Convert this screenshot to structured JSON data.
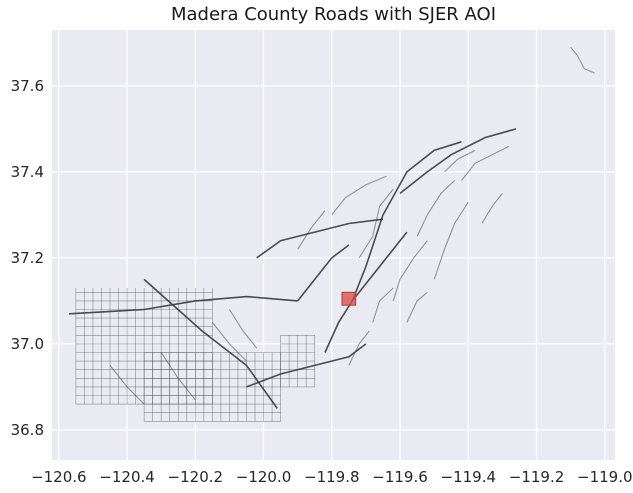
{
  "chart_data": {
    "type": "map",
    "title": "Madera County Roads with SJER AOI",
    "xlabel": "",
    "ylabel": "",
    "xlim": [
      -120.62,
      -118.97
    ],
    "ylim": [
      36.73,
      37.73
    ],
    "x_ticks": [
      {
        "value": -120.6,
        "label": "−120.6"
      },
      {
        "value": -120.4,
        "label": "−120.4"
      },
      {
        "value": -120.2,
        "label": "−120.2"
      },
      {
        "value": -120.0,
        "label": "−120.0"
      },
      {
        "value": -119.8,
        "label": "−119.8"
      },
      {
        "value": -119.6,
        "label": "−119.6"
      },
      {
        "value": -119.4,
        "label": "−119.4"
      },
      {
        "value": -119.2,
        "label": "−119.2"
      },
      {
        "value": -119.0,
        "label": "−119.0"
      }
    ],
    "y_ticks": [
      {
        "value": 36.8,
        "label": "36.8"
      },
      {
        "value": 37.0,
        "label": "37.0"
      },
      {
        "value": 37.2,
        "label": "37.2"
      },
      {
        "value": 37.4,
        "label": "37.4"
      },
      {
        "value": 37.6,
        "label": "37.6"
      }
    ],
    "grid": true,
    "colors": {
      "background": "#eaeaf2",
      "grid": "#ffffff",
      "roads": "#3a3a3a",
      "aoi_fill": "#d9534f",
      "aoi_edge": "#b03a3a"
    },
    "aoi": {
      "x": [
        -119.77,
        -119.73
      ],
      "y": [
        37.09,
        37.12
      ]
    },
    "major_roads": [
      [
        [
          -120.35,
          37.15
        ],
        [
          -120.18,
          37.03
        ],
        [
          -120.05,
          36.95
        ],
        [
          -119.96,
          36.85
        ]
      ],
      [
        [
          -120.57,
          37.07
        ],
        [
          -120.35,
          37.08
        ],
        [
          -120.2,
          37.1
        ],
        [
          -120.05,
          37.11
        ],
        [
          -119.9,
          37.1
        ]
      ],
      [
        [
          -120.05,
          36.9
        ],
        [
          -119.95,
          36.93
        ],
        [
          -119.85,
          36.95
        ],
        [
          -119.75,
          36.97
        ],
        [
          -119.7,
          37.0
        ]
      ],
      [
        [
          -119.82,
          36.98
        ],
        [
          -119.78,
          37.05
        ],
        [
          -119.74,
          37.1
        ],
        [
          -119.7,
          37.18
        ],
        [
          -119.65,
          37.3
        ],
        [
          -119.58,
          37.4
        ],
        [
          -119.5,
          37.45
        ],
        [
          -119.42,
          37.47
        ]
      ],
      [
        [
          -120.02,
          37.2
        ],
        [
          -119.95,
          37.24
        ],
        [
          -119.85,
          37.26
        ],
        [
          -119.75,
          37.28
        ],
        [
          -119.65,
          37.29
        ]
      ],
      [
        [
          -119.74,
          37.1
        ],
        [
          -119.7,
          37.14
        ],
        [
          -119.64,
          37.2
        ],
        [
          -119.58,
          37.26
        ]
      ],
      [
        [
          -119.6,
          37.35
        ],
        [
          -119.52,
          37.4
        ],
        [
          -119.45,
          37.44
        ],
        [
          -119.35,
          37.48
        ],
        [
          -119.26,
          37.5
        ]
      ],
      [
        [
          -119.9,
          37.1
        ],
        [
          -119.85,
          37.15
        ],
        [
          -119.8,
          37.2
        ],
        [
          -119.75,
          37.23
        ]
      ]
    ],
    "minor_roads": [
      [
        [
          -119.72,
          37.2
        ],
        [
          -119.68,
          37.25
        ],
        [
          -119.66,
          37.32
        ],
        [
          -119.62,
          37.36
        ]
      ],
      [
        [
          -119.55,
          37.25
        ],
        [
          -119.52,
          37.3
        ],
        [
          -119.48,
          37.35
        ],
        [
          -119.44,
          37.38
        ]
      ],
      [
        [
          -119.5,
          37.15
        ],
        [
          -119.47,
          37.22
        ],
        [
          -119.44,
          37.28
        ],
        [
          -119.4,
          37.33
        ]
      ],
      [
        [
          -119.62,
          37.1
        ],
        [
          -119.6,
          37.15
        ],
        [
          -119.56,
          37.2
        ],
        [
          -119.52,
          37.24
        ]
      ],
      [
        [
          -119.8,
          37.3
        ],
        [
          -119.76,
          37.34
        ],
        [
          -119.7,
          37.37
        ],
        [
          -119.64,
          37.39
        ]
      ],
      [
        [
          -119.9,
          37.22
        ],
        [
          -119.86,
          37.27
        ],
        [
          -119.82,
          37.31
        ]
      ],
      [
        [
          -119.42,
          37.38
        ],
        [
          -119.38,
          37.42
        ],
        [
          -119.33,
          37.44
        ],
        [
          -119.28,
          37.46
        ]
      ],
      [
        [
          -119.68,
          37.05
        ],
        [
          -119.66,
          37.1
        ],
        [
          -119.62,
          37.13
        ]
      ],
      [
        [
          -119.58,
          37.05
        ],
        [
          -119.55,
          37.1
        ],
        [
          -119.52,
          37.12
        ]
      ],
      [
        [
          -119.75,
          36.95
        ],
        [
          -119.72,
          37.0
        ],
        [
          -119.69,
          37.03
        ]
      ],
      [
        [
          -119.36,
          37.28
        ],
        [
          -119.33,
          37.32
        ],
        [
          -119.3,
          37.35
        ]
      ],
      [
        [
          -119.47,
          37.4
        ],
        [
          -119.43,
          37.43
        ],
        [
          -119.38,
          37.45
        ]
      ],
      [
        [
          -120.15,
          37.05
        ],
        [
          -120.1,
          37.0
        ],
        [
          -120.05,
          36.96
        ]
      ],
      [
        [
          -120.1,
          37.08
        ],
        [
          -120.06,
          37.03
        ],
        [
          -120.02,
          36.99
        ]
      ],
      [
        [
          -120.3,
          36.98
        ],
        [
          -120.25,
          36.92
        ],
        [
          -120.2,
          36.87
        ]
      ],
      [
        [
          -120.45,
          36.95
        ],
        [
          -120.4,
          36.9
        ],
        [
          -120.35,
          36.86
        ]
      ],
      [
        [
          -119.1,
          37.69
        ],
        [
          -119.08,
          37.67
        ],
        [
          -119.06,
          37.64
        ],
        [
          -119.03,
          37.63
        ]
      ]
    ],
    "road_grid": [
      {
        "x": [
          -120.55,
          -120.15
        ],
        "y": [
          36.86,
          37.13
        ]
      },
      {
        "x": [
          -120.35,
          -119.95
        ],
        "y": [
          36.82,
          36.98
        ]
      },
      {
        "x": [
          -119.95,
          -119.85
        ],
        "y": [
          36.9,
          37.02
        ]
      }
    ]
  }
}
